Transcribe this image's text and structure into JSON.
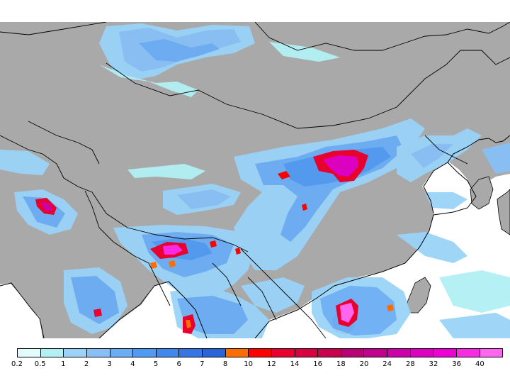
{
  "map": {
    "land_color": "#a9a9a9",
    "sea_color": "#ffffff",
    "border_color": "#000000",
    "features": [
      "precipitation-cells",
      "coastline",
      "country-borders",
      "province-borders"
    ]
  },
  "legend": {
    "bins": [
      {
        "label": "0.2",
        "color": "#e0fcfc"
      },
      {
        "label": "0.5",
        "color": "#b2f0f4"
      },
      {
        "label": "1",
        "color": "#9ad3f7"
      },
      {
        "label": "2",
        "color": "#88c0f6"
      },
      {
        "label": "3",
        "color": "#6aadf4"
      },
      {
        "label": "4",
        "color": "#4f9af2"
      },
      {
        "label": "5",
        "color": "#3f88ee"
      },
      {
        "label": "6",
        "color": "#3575e6"
      },
      {
        "label": "7",
        "color": "#2864d8"
      },
      {
        "label": "8",
        "color": "#ff6c00"
      },
      {
        "label": "10",
        "color": "#ff0000"
      },
      {
        "label": "12",
        "color": "#e8002e"
      },
      {
        "label": "14",
        "color": "#d8003e"
      },
      {
        "label": "16",
        "color": "#c8004e"
      },
      {
        "label": "18",
        "color": "#b80074"
      },
      {
        "label": "20",
        "color": "#c0008c"
      },
      {
        "label": "24",
        "color": "#cc00a8"
      },
      {
        "label": "28",
        "color": "#dc00c0"
      },
      {
        "label": "32",
        "color": "#ec00d6"
      },
      {
        "label": "36",
        "color": "#f82ae4"
      },
      {
        "label": "40",
        "color": "#ff66f0"
      }
    ]
  }
}
